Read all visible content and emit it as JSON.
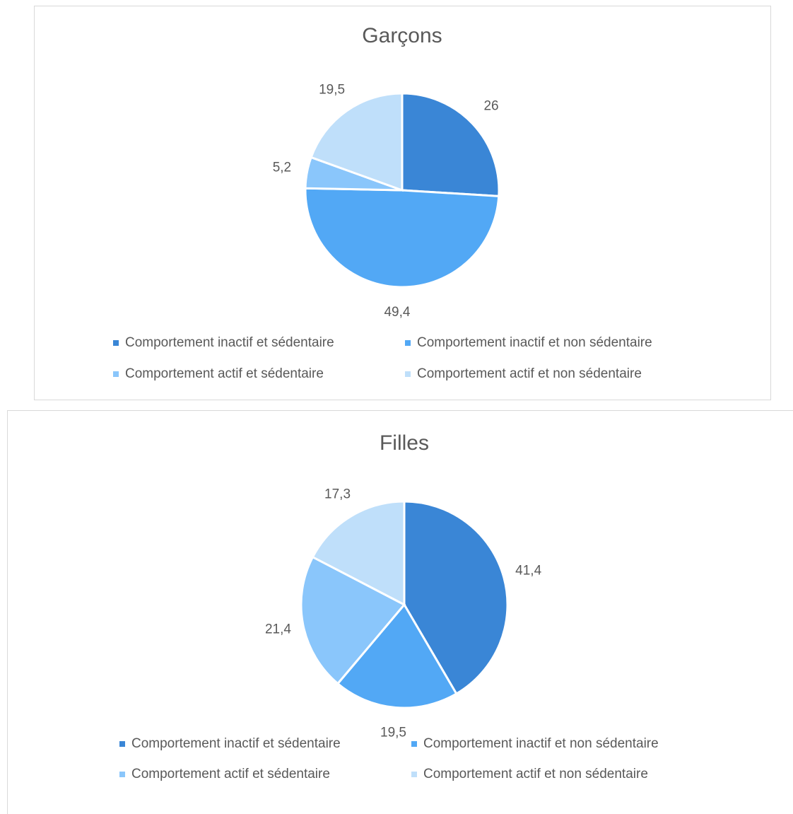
{
  "chart_data": [
    {
      "type": "pie",
      "title": "Garçons",
      "categories": [
        "Comportement inactif et sédentaire",
        "Comportement inactif et non sédentaire",
        "Comportement actif et sédentaire",
        "Comportement actif et non sédentaire"
      ],
      "values": [
        26,
        49.4,
        5.2,
        19.5
      ],
      "value_labels": [
        "26",
        "49,4",
        "5,2",
        "19,5"
      ],
      "colors": [
        "#3a86d6",
        "#52a8f5",
        "#8ac6fb",
        "#bfdffa"
      ]
    },
    {
      "type": "pie",
      "title": "Filles",
      "categories": [
        "Comportement inactif et sédentaire",
        "Comportement inactif et non sédentaire",
        "Comportement actif et sédentaire",
        "Comportement actif et non sédentaire"
      ],
      "values": [
        41.4,
        19.5,
        21.4,
        17.3
      ],
      "value_labels": [
        "41,4",
        "19,5",
        "21,4",
        "17,3"
      ],
      "colors": [
        "#3a86d6",
        "#52a8f5",
        "#8ac6fb",
        "#bfdffa"
      ]
    }
  ]
}
